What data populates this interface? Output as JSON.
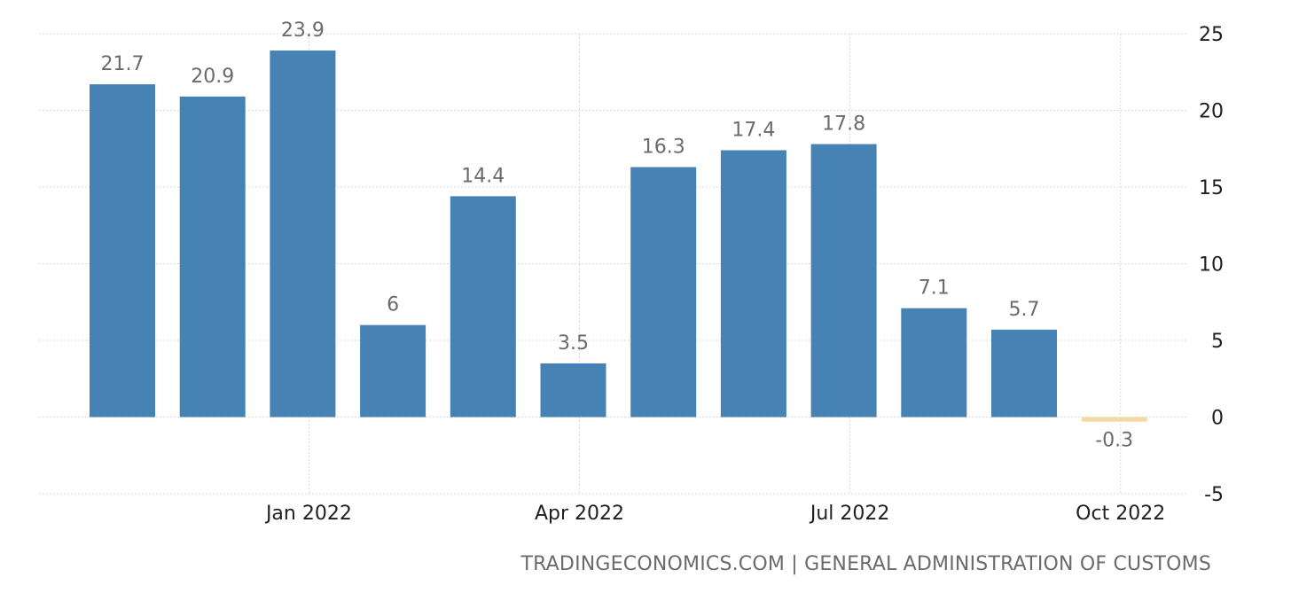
{
  "chart_data": {
    "type": "bar",
    "x": [
      "2021-11",
      "2021-12",
      "2022-01",
      "2022-02",
      "2022-03",
      "2022-04",
      "2022-05",
      "2022-06",
      "2022-07",
      "2022-08",
      "2022-09",
      "2022-10"
    ],
    "values": [
      21.7,
      20.9,
      23.9,
      6,
      14.4,
      3.5,
      16.3,
      17.4,
      17.8,
      7.1,
      5.7,
      -0.3
    ],
    "data_labels": [
      "21.7",
      "20.9",
      "23.9",
      "6",
      "14.4",
      "3.5",
      "16.3",
      "17.4",
      "17.8",
      "7.1",
      "5.7",
      "-0.3"
    ],
    "x_tick_labels": [
      {
        "x": "2022-01",
        "label": "Jan 2022"
      },
      {
        "x": "2022-04",
        "label": "Apr 2022"
      },
      {
        "x": "2022-07",
        "label": "Jul 2022"
      },
      {
        "x": "2022-10",
        "label": "Oct 2022"
      }
    ],
    "y_ticks": [
      25,
      20,
      15,
      10,
      5,
      0,
      -5
    ],
    "ylim": [
      -5,
      25
    ],
    "y_axis_side": "right",
    "grid": true,
    "colors": {
      "positive": "#4682b4",
      "negative": "#f5d9a3"
    },
    "title": "",
    "xlabel": "",
    "ylabel": ""
  },
  "source": "TRADINGECONOMICS.COM | GENERAL ADMINISTRATION OF CUSTOMS"
}
